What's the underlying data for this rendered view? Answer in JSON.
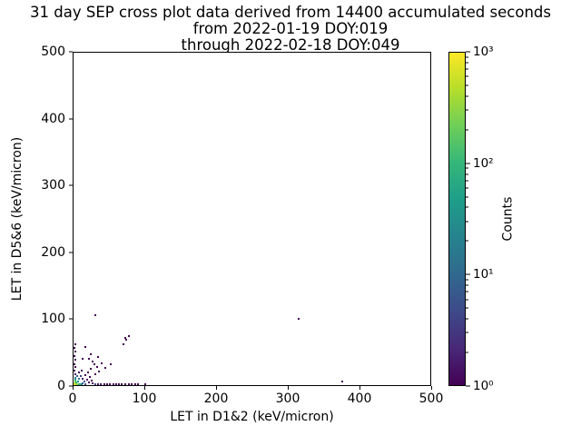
{
  "chart_data": {
    "type": "scatter",
    "title_lines": [
      "31 day SEP cross plot data derived from 14400 accumulated seconds",
      "from 2022-01-19 DOY:019",
      "through 2022-02-18 DOY:049"
    ],
    "xlabel": "LET in D1&2 (keV/micron)",
    "ylabel": "LET in D5&6 (keV/micron)",
    "xlim": [
      0,
      500
    ],
    "ylim": [
      0,
      500
    ],
    "xticks": [
      0,
      100,
      200,
      300,
      400,
      500
    ],
    "yticks": [
      0,
      100,
      200,
      300,
      400,
      500
    ],
    "grid": false,
    "colorbar": {
      "label": "Counts",
      "scale": "log",
      "range_exponents": [
        0,
        3
      ],
      "colormap": "viridis",
      "major_ticks": [
        {
          "label": "10⁰",
          "exp": 0
        },
        {
          "label": "10¹",
          "exp": 1
        },
        {
          "label": "10²",
          "exp": 2
        },
        {
          "label": "10³",
          "exp": 3
        }
      ],
      "colormap_stops": [
        "#440154",
        "#482878",
        "#3e4989",
        "#31688e",
        "#26828e",
        "#1f9e89",
        "#35b779",
        "#6ece58",
        "#b5de2b",
        "#fde725"
      ]
    },
    "points": [
      {
        "x": 1,
        "y": 1,
        "count": 900,
        "color": "#f1e51d"
      },
      {
        "x": 3,
        "y": 1,
        "count": 400,
        "color": "#c8e020"
      },
      {
        "x": 1,
        "y": 3,
        "count": 350,
        "color": "#bddf26"
      },
      {
        "x": 5,
        "y": 2,
        "count": 150,
        "color": "#7ad151"
      },
      {
        "x": 2,
        "y": 5,
        "count": 120,
        "color": "#6ece58"
      },
      {
        "x": 7,
        "y": 1,
        "count": 70,
        "color": "#3fbc73"
      },
      {
        "x": 4,
        "y": 4,
        "count": 60,
        "color": "#35b779"
      },
      {
        "x": 9,
        "y": 2,
        "count": 35,
        "color": "#25ac82"
      },
      {
        "x": 2,
        "y": 8,
        "count": 30,
        "color": "#21a585"
      },
      {
        "x": 6,
        "y": 6,
        "count": 20,
        "color": "#1f968b"
      },
      {
        "x": 11,
        "y": 1,
        "count": 15,
        "color": "#228b8d"
      },
      {
        "x": 3,
        "y": 11,
        "count": 12,
        "color": "#25838e"
      },
      {
        "x": 8,
        "y": 9,
        "count": 8,
        "color": "#2d718e"
      },
      {
        "x": 13,
        "y": 3,
        "count": 7,
        "color": "#306a8e"
      },
      {
        "x": 5,
        "y": 14,
        "count": 5,
        "color": "#355f8d"
      },
      {
        "x": 15,
        "y": 6,
        "count": 4,
        "color": "#3a538b"
      },
      {
        "x": 10,
        "y": 13,
        "count": 3,
        "color": "#414487"
      },
      {
        "x": 17,
        "y": 2,
        "count": 3,
        "color": "#414487"
      },
      {
        "x": 2,
        "y": 17,
        "count": 2,
        "color": "#481769"
      },
      {
        "x": 13,
        "y": 10,
        "count": 2,
        "color": "#481769"
      },
      {
        "x": 19,
        "y": 8,
        "count": 2,
        "color": "#481769"
      },
      {
        "x": 7,
        "y": 19,
        "count": 1,
        "color": "#440154"
      },
      {
        "x": 16,
        "y": 15,
        "count": 1,
        "color": "#440154"
      },
      {
        "x": 21,
        "y": 4,
        "count": 1,
        "color": "#440154"
      },
      {
        "x": 23,
        "y": 12,
        "count": 1,
        "color": "#440154"
      },
      {
        "x": 12,
        "y": 22,
        "count": 1,
        "color": "#440154"
      },
      {
        "x": 25,
        "y": 7,
        "count": 1,
        "color": "#440154"
      },
      {
        "x": 20,
        "y": 19,
        "count": 1,
        "color": "#440154"
      },
      {
        "x": 27,
        "y": 3,
        "count": 1,
        "color": "#440154"
      },
      {
        "x": 24,
        "y": 24,
        "count": 1,
        "color": "#440154"
      },
      {
        "x": 30,
        "y": 16,
        "count": 1,
        "color": "#440154"
      },
      {
        "x": 33,
        "y": 27,
        "count": 1,
        "color": "#440154"
      },
      {
        "x": 29,
        "y": 31,
        "count": 1,
        "color": "#440154"
      },
      {
        "x": 36,
        "y": 21,
        "count": 1,
        "color": "#440154"
      },
      {
        "x": 40,
        "y": 33,
        "count": 1,
        "color": "#440154"
      },
      {
        "x": 44,
        "y": 26,
        "count": 1,
        "color": "#440154"
      },
      {
        "x": 52,
        "y": 31,
        "count": 1,
        "color": "#440154"
      },
      {
        "x": 21,
        "y": 40,
        "count": 1,
        "color": "#440154"
      },
      {
        "x": 27,
        "y": 35,
        "count": 1,
        "color": "#440154"
      },
      {
        "x": 34,
        "y": 42,
        "count": 1,
        "color": "#440154"
      },
      {
        "x": 13,
        "y": 40,
        "count": 1,
        "color": "#440154"
      },
      {
        "x": 24,
        "y": 47,
        "count": 1,
        "color": "#440154"
      },
      {
        "x": 16,
        "y": 57,
        "count": 1,
        "color": "#440154"
      },
      {
        "x": 1,
        "y": 22,
        "count": 2,
        "color": "#481769"
      },
      {
        "x": 2,
        "y": 27,
        "count": 1,
        "color": "#440154"
      },
      {
        "x": 1,
        "y": 32,
        "count": 1,
        "color": "#440154"
      },
      {
        "x": 2,
        "y": 38,
        "count": 1,
        "color": "#440154"
      },
      {
        "x": 1,
        "y": 44,
        "count": 1,
        "color": "#440154"
      },
      {
        "x": 2,
        "y": 50,
        "count": 1,
        "color": "#440154"
      },
      {
        "x": 1,
        "y": 56,
        "count": 1,
        "color": "#440154"
      },
      {
        "x": 2,
        "y": 62,
        "count": 1,
        "color": "#440154"
      },
      {
        "x": 30,
        "y": 1,
        "count": 3,
        "color": "#414487"
      },
      {
        "x": 34,
        "y": 2,
        "count": 2,
        "color": "#481769"
      },
      {
        "x": 38,
        "y": 1,
        "count": 2,
        "color": "#481769"
      },
      {
        "x": 43,
        "y": 2,
        "count": 1,
        "color": "#440154"
      },
      {
        "x": 47,
        "y": 1,
        "count": 1,
        "color": "#440154"
      },
      {
        "x": 51,
        "y": 2,
        "count": 1,
        "color": "#440154"
      },
      {
        "x": 56,
        "y": 1,
        "count": 1,
        "color": "#440154"
      },
      {
        "x": 60,
        "y": 2,
        "count": 1,
        "color": "#440154"
      },
      {
        "x": 64,
        "y": 1,
        "count": 1,
        "color": "#440154"
      },
      {
        "x": 68,
        "y": 2,
        "count": 1,
        "color": "#440154"
      },
      {
        "x": 72,
        "y": 1,
        "count": 1,
        "color": "#440154"
      },
      {
        "x": 77,
        "y": 2,
        "count": 1,
        "color": "#440154"
      },
      {
        "x": 81,
        "y": 1,
        "count": 1,
        "color": "#440154"
      },
      {
        "x": 86,
        "y": 2,
        "count": 1,
        "color": "#440154"
      },
      {
        "x": 90,
        "y": 1,
        "count": 1,
        "color": "#440154"
      },
      {
        "x": 101,
        "y": 2,
        "count": 1,
        "color": "#440154"
      },
      {
        "x": 376,
        "y": 5,
        "count": 1,
        "color": "#440154"
      },
      {
        "x": 70,
        "y": 62,
        "count": 1,
        "color": "#440154"
      },
      {
        "x": 74,
        "y": 68,
        "count": 1,
        "color": "#440154"
      },
      {
        "x": 72,
        "y": 71,
        "count": 1,
        "color": "#440154"
      },
      {
        "x": 77,
        "y": 74,
        "count": 1,
        "color": "#440154"
      },
      {
        "x": 31,
        "y": 105,
        "count": 1,
        "color": "#440154"
      },
      {
        "x": 316,
        "y": 100,
        "count": 1,
        "color": "#440154"
      }
    ]
  }
}
